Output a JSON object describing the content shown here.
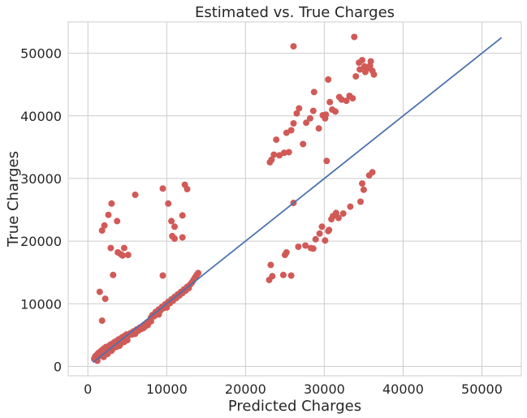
{
  "chart_data": {
    "type": "scatter",
    "title": "Estimated vs. True Charges",
    "xlabel": "Predicted Charges",
    "ylabel": "True Charges",
    "xlim": [
      -2500,
      55000
    ],
    "ylim": [
      -1500,
      55000
    ],
    "xticks": [
      0,
      10000,
      20000,
      30000,
      40000,
      50000
    ],
    "yticks": [
      0,
      10000,
      20000,
      30000,
      40000,
      50000
    ],
    "xtick_labels": [
      "0",
      "10000",
      "20000",
      "30000",
      "40000",
      "50000"
    ],
    "ytick_labels": [
      "0",
      "10000",
      "20000",
      "30000",
      "40000",
      "50000"
    ],
    "grid": true,
    "colors": {
      "points": "#d15a57",
      "line": "#4c72b0",
      "grid": "#cccccc",
      "frame": "#cccccc"
    },
    "reference_line": {
      "x": [
        650,
        52500
      ],
      "y": [
        650,
        52500
      ]
    },
    "series": [
      {
        "points": [
          [
            800,
            1200
          ],
          [
            900,
            1500
          ],
          [
            1000,
            1700
          ],
          [
            1100,
            1300
          ],
          [
            1200,
            1900
          ],
          [
            1300,
            2100
          ],
          [
            1400,
            1600
          ],
          [
            1500,
            2300
          ],
          [
            1600,
            2000
          ],
          [
            1700,
            2500
          ],
          [
            1800,
            1800
          ],
          [
            1900,
            2700
          ],
          [
            2000,
            2200
          ],
          [
            2100,
            2900
          ],
          [
            2200,
            2400
          ],
          [
            2300,
            3100
          ],
          [
            2400,
            2600
          ],
          [
            2500,
            2000
          ],
          [
            2600,
            2800
          ],
          [
            2700,
            3300
          ],
          [
            2800,
            3000
          ],
          [
            2900,
            3500
          ],
          [
            3000,
            3200
          ],
          [
            3100,
            2700
          ],
          [
            3200,
            3700
          ],
          [
            3300,
            3400
          ],
          [
            3400,
            3900
          ],
          [
            3500,
            3600
          ],
          [
            3600,
            3100
          ],
          [
            3700,
            4100
          ],
          [
            3800,
            3800
          ],
          [
            3900,
            4300
          ],
          [
            4000,
            4000
          ],
          [
            4100,
            3500
          ],
          [
            4200,
            4500
          ],
          [
            4300,
            4200
          ],
          [
            4400,
            4700
          ],
          [
            4500,
            4400
          ],
          [
            4600,
            3900
          ],
          [
            4700,
            4900
          ],
          [
            4800,
            4600
          ],
          [
            4900,
            5100
          ],
          [
            5000,
            4800
          ],
          [
            5200,
            5000
          ],
          [
            5400,
            5300
          ],
          [
            5600,
            5100
          ],
          [
            5800,
            5600
          ],
          [
            6000,
            5400
          ],
          [
            6200,
            5900
          ],
          [
            6400,
            5700
          ],
          [
            6600,
            6200
          ],
          [
            6800,
            6000
          ],
          [
            7000,
            6500
          ],
          [
            7200,
            6300
          ],
          [
            7400,
            6800
          ],
          [
            7600,
            6600
          ],
          [
            7800,
            7100
          ],
          [
            8000,
            7800
          ],
          [
            8200,
            8200
          ],
          [
            8400,
            8000
          ],
          [
            8600,
            8700
          ],
          [
            8800,
            8500
          ],
          [
            9000,
            9100
          ],
          [
            9200,
            8900
          ],
          [
            9400,
            9500
          ],
          [
            9600,
            9300
          ],
          [
            9800,
            9900
          ],
          [
            10000,
            9700
          ],
          [
            10200,
            10300
          ],
          [
            10400,
            10100
          ],
          [
            10600,
            10700
          ],
          [
            10800,
            10500
          ],
          [
            11000,
            11100
          ],
          [
            11200,
            10900
          ],
          [
            11400,
            11500
          ],
          [
            11600,
            11300
          ],
          [
            11800,
            11900
          ],
          [
            12000,
            11700
          ],
          [
            12200,
            12300
          ],
          [
            12400,
            12100
          ],
          [
            12600,
            12700
          ],
          [
            12800,
            12500
          ],
          [
            13000,
            13100
          ],
          [
            13200,
            13400
          ],
          [
            13400,
            13800
          ],
          [
            13600,
            14200
          ],
          [
            13800,
            14600
          ],
          [
            14000,
            14900
          ],
          [
            1200,
            900
          ],
          [
            2000,
            1500
          ],
          [
            3000,
            2500
          ],
          [
            4000,
            3300
          ],
          [
            5000,
            4200
          ],
          [
            6000,
            5200
          ],
          [
            7000,
            6100
          ],
          [
            8000,
            7200
          ],
          [
            9000,
            8300
          ],
          [
            10000,
            9400
          ],
          [
            1500,
            11900
          ],
          [
            1800,
            7300
          ],
          [
            2200,
            10800
          ],
          [
            1800,
            21700
          ],
          [
            2100,
            22500
          ],
          [
            2600,
            24200
          ],
          [
            3000,
            26000
          ],
          [
            2900,
            18900
          ],
          [
            3200,
            14600
          ],
          [
            3700,
            23200
          ],
          [
            3800,
            18200
          ],
          [
            4200,
            17900
          ],
          [
            4400,
            17700
          ],
          [
            4600,
            18900
          ],
          [
            5100,
            17800
          ],
          [
            6000,
            27400
          ],
          [
            9500,
            28400
          ],
          [
            9500,
            14500
          ],
          [
            10200,
            26000
          ],
          [
            10600,
            23200
          ],
          [
            10700,
            20800
          ],
          [
            11000,
            22300
          ],
          [
            11000,
            20400
          ],
          [
            12000,
            24100
          ],
          [
            12000,
            20600
          ],
          [
            12300,
            29000
          ],
          [
            12600,
            28300
          ],
          [
            23000,
            13800
          ],
          [
            23400,
            14400
          ],
          [
            23200,
            16200
          ],
          [
            24800,
            14600
          ],
          [
            25000,
            17800
          ],
          [
            25200,
            18200
          ],
          [
            25800,
            14500
          ],
          [
            26700,
            19100
          ],
          [
            27600,
            19300
          ],
          [
            28300,
            18900
          ],
          [
            28600,
            18800
          ],
          [
            28900,
            20300
          ],
          [
            29400,
            21200
          ],
          [
            29700,
            22300
          ],
          [
            30100,
            20100
          ],
          [
            30500,
            21600
          ],
          [
            30600,
            21800
          ],
          [
            30900,
            23500
          ],
          [
            31100,
            24000
          ],
          [
            31500,
            24500
          ],
          [
            31800,
            23700
          ],
          [
            32400,
            24400
          ],
          [
            33300,
            25500
          ],
          [
            34600,
            26300
          ],
          [
            34800,
            29200
          ],
          [
            35000,
            28200
          ],
          [
            35700,
            30500
          ],
          [
            36100,
            31000
          ],
          [
            23100,
            32600
          ],
          [
            23300,
            33000
          ],
          [
            23600,
            33800
          ],
          [
            23900,
            36200
          ],
          [
            24300,
            33700
          ],
          [
            24900,
            34100
          ],
          [
            25200,
            37300
          ],
          [
            25500,
            34200
          ],
          [
            25800,
            37700
          ],
          [
            26100,
            38800
          ],
          [
            26500,
            40400
          ],
          [
            26800,
            41200
          ],
          [
            27300,
            35500
          ],
          [
            27700,
            38900
          ],
          [
            28200,
            39600
          ],
          [
            28700,
            43800
          ],
          [
            28600,
            40800
          ],
          [
            29300,
            38000
          ],
          [
            29800,
            40100
          ],
          [
            30200,
            40200
          ],
          [
            30500,
            45800
          ],
          [
            30700,
            42200
          ],
          [
            31000,
            41000
          ],
          [
            31400,
            40700
          ],
          [
            31900,
            43000
          ],
          [
            32200,
            42600
          ],
          [
            32800,
            42400
          ],
          [
            33200,
            43200
          ],
          [
            33600,
            42800
          ],
          [
            34000,
            46300
          ],
          [
            34400,
            48500
          ],
          [
            34800,
            48900
          ],
          [
            35200,
            47000
          ],
          [
            35500,
            47600
          ],
          [
            35800,
            48000
          ],
          [
            36100,
            47200
          ],
          [
            36300,
            46600
          ],
          [
            35900,
            48700
          ],
          [
            35100,
            47900
          ],
          [
            34500,
            47400
          ],
          [
            33800,
            52600
          ],
          [
            26100,
            51100
          ],
          [
            30300,
            32800
          ],
          [
            30100,
            39600
          ],
          [
            26100,
            26100
          ]
        ]
      }
    ]
  }
}
